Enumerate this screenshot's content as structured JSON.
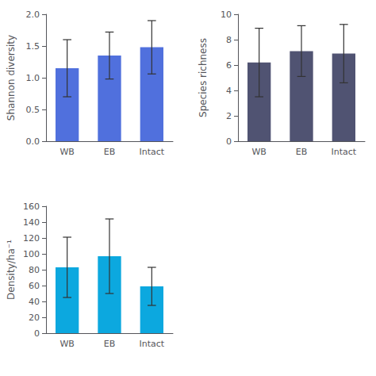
{
  "chart_data": [
    {
      "type": "bar",
      "categories": [
        "WB",
        "EB",
        "Intact"
      ],
      "values": [
        1.15,
        1.35,
        1.48
      ],
      "errors": [
        0.45,
        0.37,
        0.42
      ],
      "ylabel": "Shannon diversity",
      "ylim": [
        0.0,
        2.0
      ],
      "yticks": [
        {
          "value": 0,
          "label": "0.0"
        },
        0.5,
        {
          "value": 1,
          "label": "1.0"
        },
        1.5,
        {
          "value": 2,
          "label": "2.0"
        }
      ]
    },
    {
      "type": "bar",
      "categories": [
        "WB",
        "EB",
        "Intact"
      ],
      "values": [
        6.2,
        7.1,
        6.9
      ],
      "errors": [
        2.7,
        2.0,
        2.3
      ],
      "ylabel": "Species richness",
      "ylim": [
        0,
        10
      ],
      "yticks": [
        0,
        2,
        4,
        6,
        8,
        10
      ]
    },
    {
      "type": "bar",
      "categories": [
        "WB",
        "EB",
        "Intact"
      ],
      "values": [
        83,
        97,
        59
      ],
      "errors": [
        38,
        47,
        24
      ],
      "ylabel": "Density/ha⁻¹",
      "ylim": [
        0,
        160
      ],
      "yticks": [
        0,
        20,
        40,
        60,
        80,
        100,
        120,
        140,
        160
      ]
    }
  ]
}
